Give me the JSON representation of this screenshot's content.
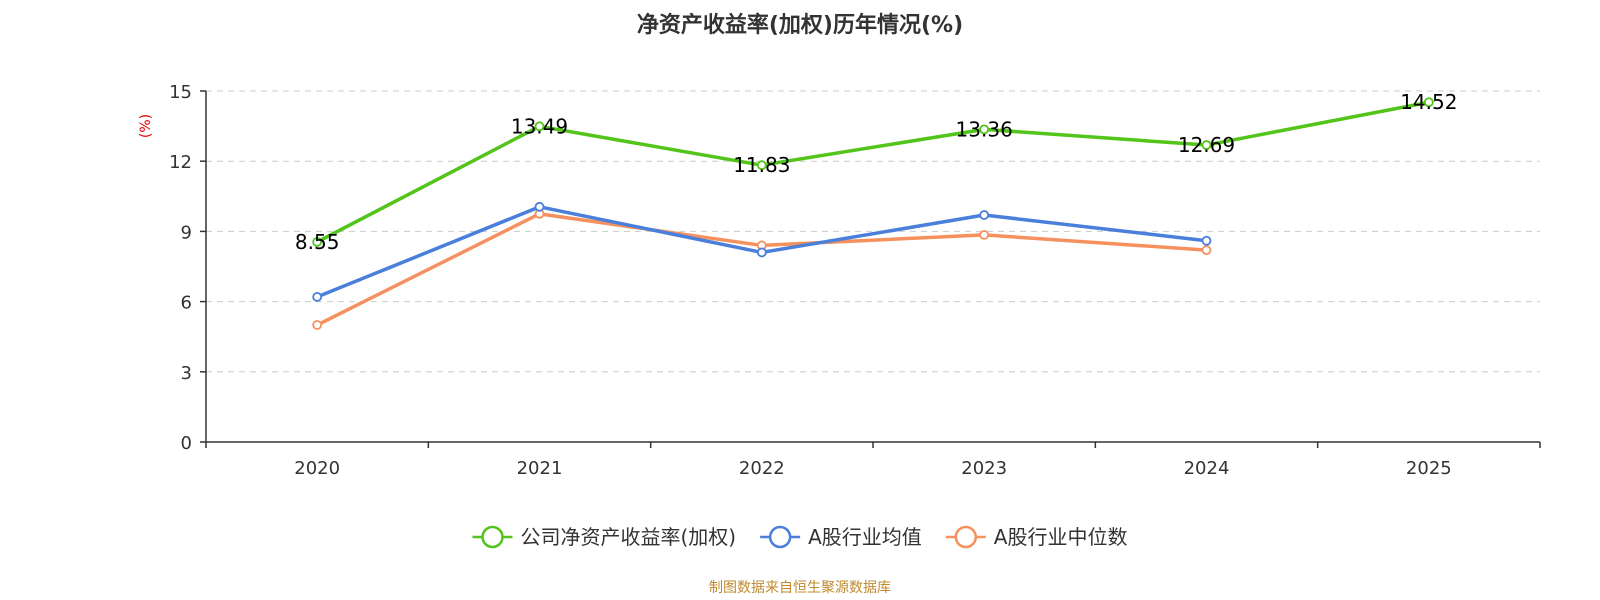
{
  "chart_data": {
    "type": "line",
    "title": "净资产收益率(加权)历年情况(%)",
    "xlabel": "",
    "ylabel": "(%)",
    "categories": [
      "2020",
      "2021",
      "2022",
      "2023",
      "2024",
      "2025"
    ],
    "ylim": [
      0,
      15
    ],
    "yticks": [
      0,
      3,
      6,
      9,
      12,
      15
    ],
    "grid": true,
    "legend_position": "bottom",
    "series": [
      {
        "name": "公司净资产收益率(加权)",
        "color": "#52c41a",
        "values": [
          8.55,
          13.49,
          11.83,
          13.36,
          12.69,
          14.52
        ],
        "labels": [
          "8.55",
          "13.49",
          "11.83",
          "13.36",
          "12.69",
          "14.52"
        ]
      },
      {
        "name": "A股行业均值",
        "color": "#4a7fdb",
        "values": [
          6.2,
          10.05,
          8.1,
          9.7,
          8.6,
          null
        ]
      },
      {
        "name": "A股行业中位数",
        "color": "#f5915e",
        "values": [
          5.0,
          9.75,
          8.4,
          8.85,
          8.2,
          null
        ]
      }
    ],
    "source": "制图数据来自恒生聚源数据库"
  }
}
